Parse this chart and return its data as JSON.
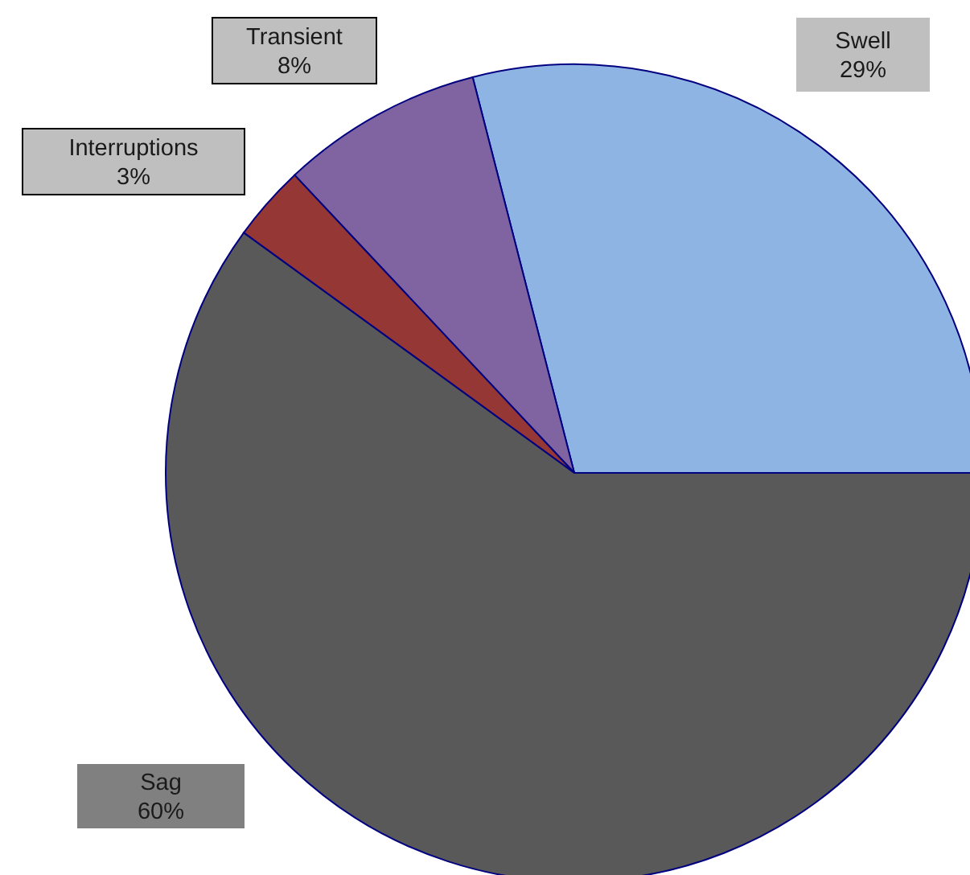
{
  "chart_data": {
    "type": "pie",
    "categories": [
      "Swell",
      "Transient",
      "Interruptions",
      "Sag"
    ],
    "values": [
      29,
      8,
      3,
      60
    ],
    "colors": [
      "#8eb4e3",
      "#8064a2",
      "#953735",
      "#595959"
    ],
    "value_labels": [
      "29%",
      "8%",
      "3%",
      "60%"
    ]
  }
}
